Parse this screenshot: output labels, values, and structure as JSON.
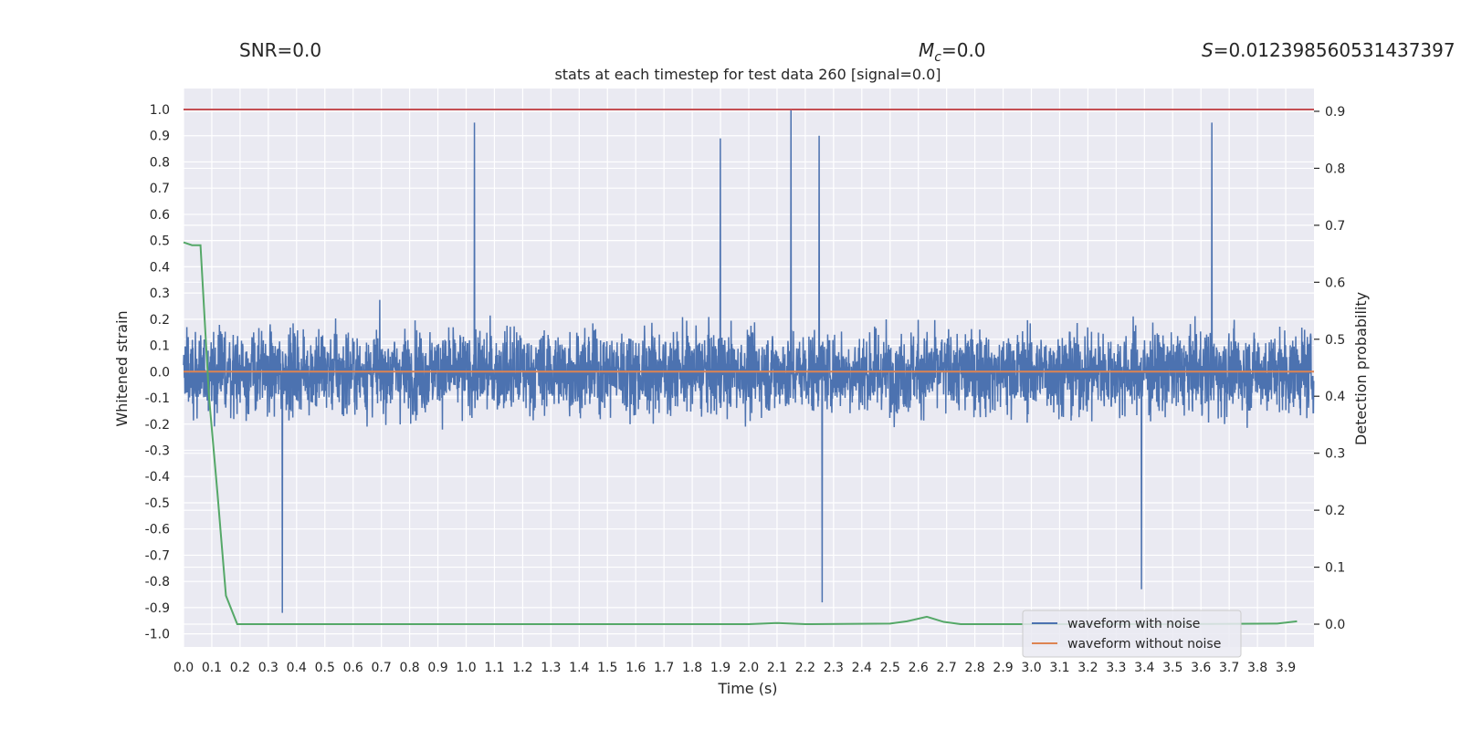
{
  "header": {
    "snr": "SNR=0.0",
    "mc_symbol": "M",
    "mc_sub": "c",
    "mc_value": "=0.0",
    "s_symbol": "S",
    "s_value": "=0.012398560531437397"
  },
  "chart_data": {
    "type": "line",
    "title": "stats at each timestep for test data 260 [signal=0.0]",
    "xlabel": "Time (s)",
    "ylabel": "Whitened strain",
    "y2label": "Detection probability",
    "xlim": [
      0.0,
      4.0
    ],
    "ylim": [
      -1.05,
      1.08
    ],
    "y2lim": [
      -0.04,
      0.94
    ],
    "xticks": [
      "0.0",
      "0.1",
      "0.2",
      "0.3",
      "0.4",
      "0.5",
      "0.6",
      "0.7",
      "0.8",
      "0.9",
      "1.0",
      "1.1",
      "1.2",
      "1.3",
      "1.4",
      "1.5",
      "1.6",
      "1.7",
      "1.8",
      "1.9",
      "2.0",
      "2.1",
      "2.2",
      "2.3",
      "2.4",
      "2.5",
      "2.6",
      "2.7",
      "2.8",
      "2.9",
      "3.0",
      "3.1",
      "3.2",
      "3.3",
      "3.4",
      "3.5",
      "3.6",
      "3.7",
      "3.8",
      "3.9"
    ],
    "yticks": [
      "1.0",
      "0.9",
      "0.8",
      "0.7",
      "0.6",
      "0.5",
      "0.4",
      "0.3",
      "0.2",
      "0.1",
      "0.0",
      "-0.1",
      "-0.2",
      "-0.3",
      "-0.4",
      "-0.5",
      "-0.6",
      "-0.7",
      "-0.8",
      "-0.9",
      "-1.0"
    ],
    "y2ticks": [
      "0.9",
      "0.8",
      "0.7",
      "0.6",
      "0.5",
      "0.4",
      "0.3",
      "0.2",
      "0.1",
      "0.0"
    ],
    "grid": true,
    "legend_position": "lower-right",
    "series": [
      {
        "name": "waveform with noise",
        "color": "#4c72b0",
        "axis": "left",
        "note_samples": 4096,
        "peaks": [
          {
            "x": 2.15,
            "y": 1.0
          },
          {
            "x": 1.03,
            "y": 0.95
          },
          {
            "x": 3.64,
            "y": 0.95
          },
          {
            "x": 2.25,
            "y": 0.9
          },
          {
            "x": 1.9,
            "y": 0.89
          },
          {
            "x": 0.35,
            "y": -0.92
          },
          {
            "x": 2.26,
            "y": -0.88
          },
          {
            "x": 3.39,
            "y": -0.83
          }
        ]
      },
      {
        "name": "waveform without noise",
        "color": "#dd8452",
        "axis": "left",
        "x": [
          0.0,
          4.0
        ],
        "y": [
          0.0,
          0.0
        ]
      },
      {
        "color": "#55a868",
        "axis": "right",
        "x": [
          0.0,
          0.03,
          0.06,
          0.09,
          0.12,
          0.15,
          0.19,
          0.25,
          0.5,
          1.0,
          1.5,
          2.0,
          2.1,
          2.2,
          2.5,
          2.56,
          2.63,
          2.69,
          2.75,
          3.0,
          3.5,
          3.87,
          3.94
        ],
        "y": [
          0.67,
          0.665,
          0.665,
          0.4,
          0.23,
          0.05,
          0.0,
          0.0,
          0.0,
          0.0,
          0.0,
          0.0,
          0.002,
          0.0,
          0.001,
          0.005,
          0.013,
          0.004,
          0.0,
          0.0,
          0.0,
          0.001,
          0.005
        ]
      },
      {
        "color": "#c44e52",
        "axis": "left",
        "x": [
          0.0,
          4.0
        ],
        "y": [
          1.0,
          1.0
        ]
      }
    ]
  }
}
